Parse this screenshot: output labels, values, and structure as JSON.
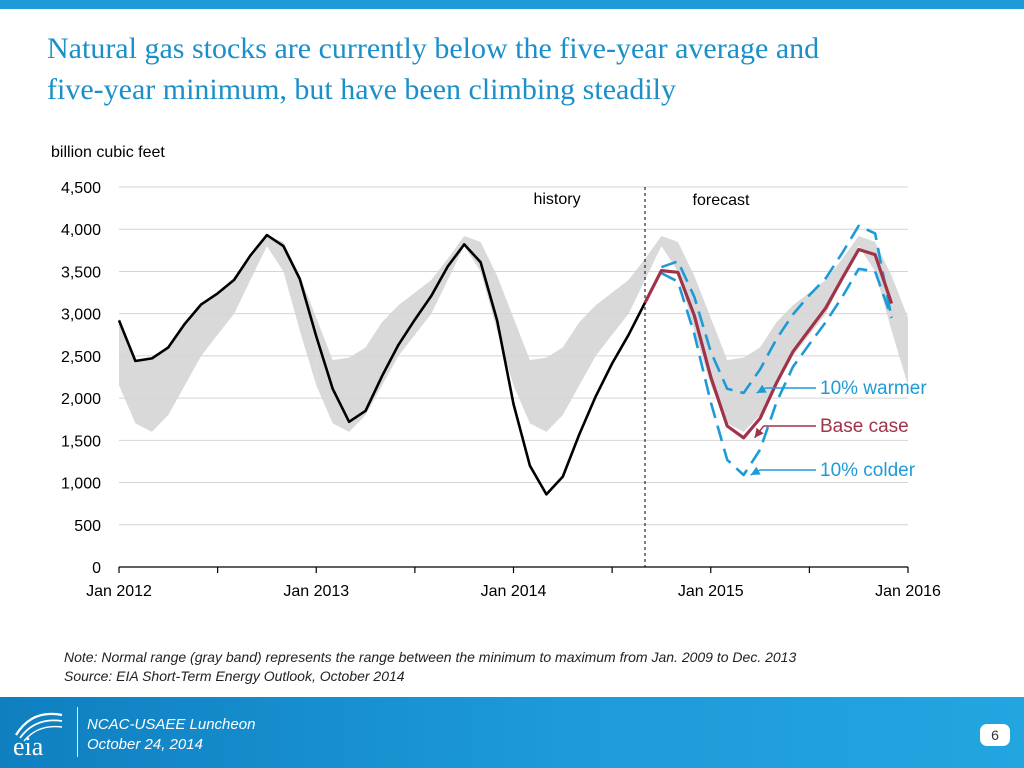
{
  "slide": {
    "title_line1": "Natural gas stocks are currently below the five-year average and",
    "title_line2": "five-year minimum, but have been climbing steadily"
  },
  "note": {
    "line1": "Note:  Normal range (gray band) represents the range between the minimum to maximum from Jan. 2009 to Dec. 2013",
    "line2": "Source:  EIA Short-Term Energy Outlook, October 2014"
  },
  "footer": {
    "logo_text": "eia",
    "line1": "NCAC-USAEE Luncheon",
    "line2": "October 24, 2014",
    "page_number": "6"
  },
  "colors": {
    "accent": "#1e9bd7",
    "title": "#1a8fc9",
    "history": "#000000",
    "base_case": "#a0334a",
    "scenario": "#1e9bd7",
    "band": "#d9d9d9"
  },
  "chart_data": {
    "type": "line",
    "ylabel": "billion cubic feet",
    "ylim": [
      0,
      4500
    ],
    "yticks": [
      0,
      500,
      1000,
      1500,
      2000,
      2500,
      3000,
      3500,
      4000,
      4500
    ],
    "ytick_labels": [
      "0",
      "500",
      "1,000",
      "1,500",
      "2,000",
      "2,500",
      "3,000",
      "3,500",
      "4,000",
      "4,500"
    ],
    "x_range": [
      "2012-01",
      "2016-01"
    ],
    "xtick_labels": [
      "Jan 2012",
      "Jan 2013",
      "Jan 2014",
      "Jan 2015",
      "Jan 2016"
    ],
    "xtick_dates": [
      "2012-01",
      "2013-01",
      "2014-01",
      "2015-01",
      "2016-01"
    ],
    "minor_tick_dates": [
      "2012-07",
      "2013-07",
      "2014-07",
      "2015-07"
    ],
    "grid": true,
    "divider_date": "2014-09",
    "region_labels": {
      "history": "history",
      "forecast": "forecast"
    },
    "normal_range_band": {
      "months": [
        "Jan",
        "Feb",
        "Mar",
        "Apr",
        "May",
        "Jun",
        "Jul",
        "Aug",
        "Sep",
        "Oct",
        "Nov",
        "Dec"
      ],
      "min": [
        2150,
        1700,
        1600,
        1800,
        2150,
        2500,
        2750,
        3000,
        3400,
        3800,
        3500,
        2800
      ],
      "max": [
        2950,
        2450,
        2480,
        2600,
        2900,
        3100,
        3250,
        3400,
        3650,
        3920,
        3850,
        3450
      ],
      "periods": [
        [
          "2012-01",
          "2012-12"
        ],
        [
          "2013-01",
          "2013-12"
        ],
        [
          "2014-01",
          "2014-12"
        ],
        [
          "2015-01",
          "2015-12"
        ]
      ],
      "end": [
        "2016-01",
        2150,
        2950
      ]
    },
    "series": [
      {
        "name": "history",
        "points": [
          [
            "2012-01",
            2920
          ],
          [
            "2012-02",
            2440
          ],
          [
            "2012-03",
            2470
          ],
          [
            "2012-04",
            2600
          ],
          [
            "2012-05",
            2880
          ],
          [
            "2012-06",
            3110
          ],
          [
            "2012-07",
            3240
          ],
          [
            "2012-08",
            3400
          ],
          [
            "2012-09",
            3690
          ],
          [
            "2012-10",
            3930
          ],
          [
            "2012-11",
            3800
          ],
          [
            "2012-12",
            3410
          ],
          [
            "2013-01",
            2730
          ],
          [
            "2013-02",
            2110
          ],
          [
            "2013-03",
            1720
          ],
          [
            "2013-04",
            1850
          ],
          [
            "2013-05",
            2260
          ],
          [
            "2013-06",
            2630
          ],
          [
            "2013-07",
            2930
          ],
          [
            "2013-08",
            3210
          ],
          [
            "2013-09",
            3560
          ],
          [
            "2013-10",
            3820
          ],
          [
            "2013-11",
            3610
          ],
          [
            "2013-12",
            2920
          ],
          [
            "2014-01",
            1930
          ],
          [
            "2014-02",
            1200
          ],
          [
            "2014-03",
            860
          ],
          [
            "2014-04",
            1070
          ],
          [
            "2014-05",
            1570
          ],
          [
            "2014-06",
            2020
          ],
          [
            "2014-07",
            2410
          ],
          [
            "2014-08",
            2750
          ],
          [
            "2014-09",
            3130
          ]
        ]
      },
      {
        "name": "Base case",
        "points": [
          [
            "2014-09",
            3130
          ],
          [
            "2014-10",
            3510
          ],
          [
            "2014-11",
            3490
          ],
          [
            "2014-12",
            2980
          ],
          [
            "2015-01",
            2250
          ],
          [
            "2015-02",
            1670
          ],
          [
            "2015-03",
            1530
          ],
          [
            "2015-04",
            1760
          ],
          [
            "2015-05",
            2180
          ],
          [
            "2015-06",
            2550
          ],
          [
            "2015-07",
            2810
          ],
          [
            "2015-08",
            3070
          ],
          [
            "2015-09",
            3420
          ],
          [
            "2015-10",
            3760
          ],
          [
            "2015-11",
            3700
          ],
          [
            "2015-12",
            3120
          ]
        ]
      },
      {
        "name": "10% warmer",
        "points": [
          [
            "2014-10",
            3550
          ],
          [
            "2014-11",
            3620
          ],
          [
            "2014-12",
            3200
          ],
          [
            "2015-01",
            2550
          ],
          [
            "2015-02",
            2110
          ],
          [
            "2015-03",
            2060
          ],
          [
            "2015-04",
            2340
          ],
          [
            "2015-05",
            2700
          ],
          [
            "2015-06",
            2990
          ],
          [
            "2015-07",
            3220
          ],
          [
            "2015-08",
            3420
          ],
          [
            "2015-09",
            3720
          ],
          [
            "2015-10",
            4040
          ],
          [
            "2015-11",
            3950
          ],
          [
            "2015-12",
            2950
          ]
        ]
      },
      {
        "name": "10% colder",
        "points": [
          [
            "2014-10",
            3480
          ],
          [
            "2014-11",
            3380
          ],
          [
            "2014-12",
            2760
          ],
          [
            "2015-01",
            1950
          ],
          [
            "2015-02",
            1270
          ],
          [
            "2015-03",
            1090
          ],
          [
            "2015-04",
            1390
          ],
          [
            "2015-05",
            1950
          ],
          [
            "2015-06",
            2370
          ],
          [
            "2015-07",
            2640
          ],
          [
            "2015-08",
            2900
          ],
          [
            "2015-09",
            3200
          ],
          [
            "2015-10",
            3530
          ],
          [
            "2015-11",
            3500
          ],
          [
            "2015-12",
            2950
          ]
        ]
      }
    ],
    "annotations": [
      {
        "text": "10% warmer",
        "series": "10% warmer",
        "point_date": "2015-03",
        "point_value": 2060
      },
      {
        "text": "Base case",
        "series": "Base case",
        "point_date": "2015-03",
        "point_value": 1530
      },
      {
        "text": "10% colder",
        "series": "10% colder",
        "point_date": "2015-03",
        "point_value": 1090
      }
    ]
  }
}
